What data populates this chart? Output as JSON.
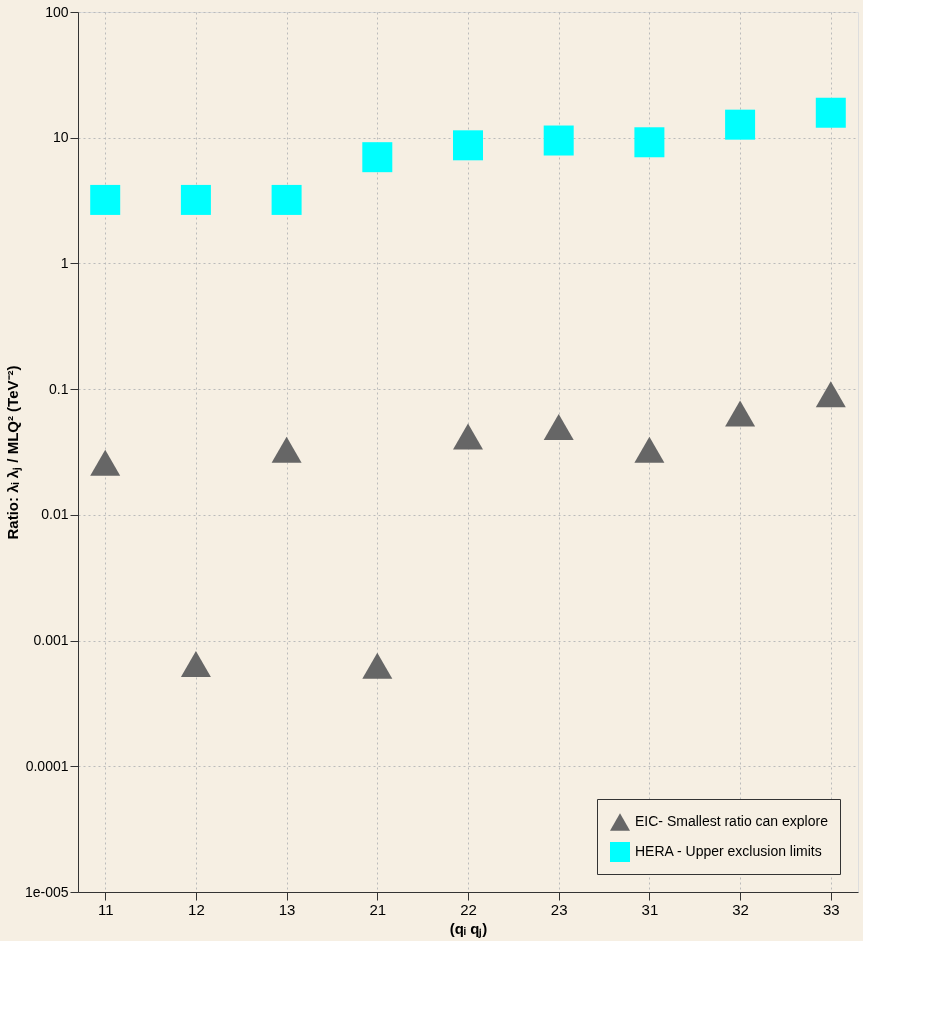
{
  "chart_data": {
    "type": "scatter",
    "xlabel": "(qᵢ qⱼ)",
    "ylabel": "Ratio: λᵢ λⱼ / MLQ² (TeV⁻²)",
    "categories": [
      "11",
      "12",
      "13",
      "21",
      "22",
      "23",
      "31",
      "32",
      "33"
    ],
    "series": [
      {
        "name": "EIC- Smallest ratio can explore",
        "color": "#666666",
        "marker": "triangle",
        "values": [
          0.026,
          0.00065,
          0.033,
          0.00063,
          0.042,
          0.05,
          0.033,
          0.064,
          0.091
        ]
      },
      {
        "name": "HERA - Upper exclusion limits",
        "color": "#00ffff",
        "marker": "square",
        "values": [
          3.2,
          3.2,
          3.2,
          7.0,
          8.7,
          9.5,
          9.2,
          12.7,
          15.8
        ]
      }
    ],
    "log": "y",
    "ylim": [
      1e-05,
      100
    ],
    "yticks": [
      100,
      10,
      1,
      0.1,
      0.01,
      0.001,
      0.0001,
      {
        "value": 1e-05,
        "label": "1e-005"
      }
    ],
    "grid": true,
    "legend": "bottom right"
  }
}
